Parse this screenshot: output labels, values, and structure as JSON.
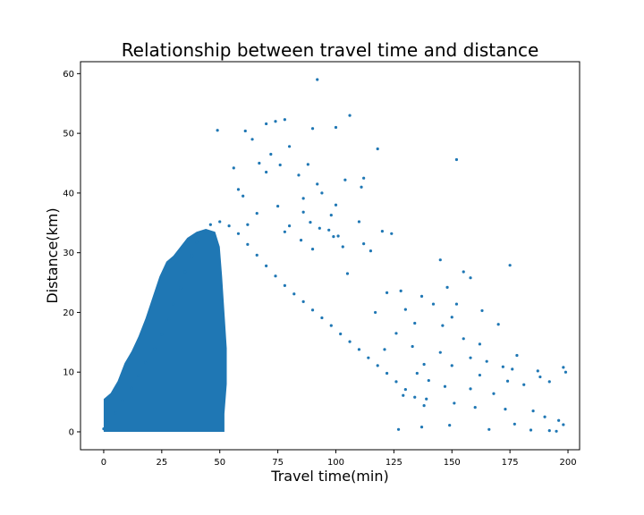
{
  "chart_data": {
    "type": "scatter",
    "title": "Relationship between travel time and distance",
    "xlabel": "Travel time(min)",
    "ylabel": "Distance(km)",
    "xlim": [
      -10,
      205
    ],
    "ylim": [
      -3,
      62
    ],
    "x_ticks": [
      0,
      25,
      50,
      75,
      100,
      125,
      150,
      175,
      200
    ],
    "y_ticks": [
      0,
      10,
      20,
      30,
      40,
      50,
      60
    ],
    "grid": false,
    "legend": "none",
    "color": "#1f77b4",
    "series": [
      {
        "points": [
          [
            92,
            59
          ],
          [
            106,
            53
          ],
          [
            78,
            52.3
          ],
          [
            74,
            52
          ],
          [
            70,
            51.6
          ],
          [
            100,
            51
          ],
          [
            90,
            50.8
          ],
          [
            49,
            50.5
          ],
          [
            61,
            50.4
          ],
          [
            64,
            49
          ],
          [
            118,
            47.4
          ],
          [
            80,
            47.8
          ],
          [
            152,
            45.6
          ],
          [
            72,
            46.5
          ],
          [
            88,
            44.8
          ],
          [
            67,
            45
          ],
          [
            76,
            44.7
          ],
          [
            56,
            44.2
          ],
          [
            70,
            43.5
          ],
          [
            84,
            43
          ],
          [
            112,
            42.5
          ],
          [
            104,
            42.2
          ],
          [
            92,
            41.5
          ],
          [
            111,
            41
          ],
          [
            58,
            40.6
          ],
          [
            94,
            40
          ],
          [
            86,
            39.1
          ],
          [
            60,
            39.5
          ],
          [
            100,
            38
          ],
          [
            75,
            37.8
          ],
          [
            86,
            36.8
          ],
          [
            98,
            36.3
          ],
          [
            66,
            36.6
          ],
          [
            89,
            35.1
          ],
          [
            110,
            35.2
          ],
          [
            62,
            34.7
          ],
          [
            80,
            34.5
          ],
          [
            93,
            34.1
          ],
          [
            78,
            33.5
          ],
          [
            97,
            33.8
          ],
          [
            120,
            33.6
          ],
          [
            124,
            33.2
          ],
          [
            99,
            32.7
          ],
          [
            101,
            32.8
          ],
          [
            85,
            32.1
          ],
          [
            112,
            31.5
          ],
          [
            103,
            31
          ],
          [
            90,
            30.6
          ],
          [
            115,
            30.3
          ],
          [
            145,
            28.8
          ],
          [
            175,
            27.9
          ],
          [
            155,
            26.8
          ],
          [
            105,
            26.5
          ],
          [
            158,
            25.8
          ],
          [
            148,
            24.2
          ],
          [
            128,
            23.6
          ],
          [
            122,
            23.3
          ],
          [
            137,
            22.7
          ],
          [
            142,
            21.4
          ],
          [
            130,
            20.5
          ],
          [
            152,
            21.4
          ],
          [
            163,
            20.3
          ],
          [
            117,
            20
          ],
          [
            150,
            19.2
          ],
          [
            134,
            18.2
          ],
          [
            146,
            17.8
          ],
          [
            170,
            18
          ],
          [
            126,
            16.5
          ],
          [
            155,
            15.6
          ],
          [
            162,
            14.7
          ],
          [
            133,
            14.3
          ],
          [
            121,
            13.8
          ],
          [
            145,
            13.3
          ],
          [
            158,
            12.4
          ],
          [
            178,
            12.8
          ],
          [
            165,
            11.8
          ],
          [
            138,
            11.3
          ],
          [
            150,
            11.1
          ],
          [
            172,
            10.9
          ],
          [
            176,
            10.5
          ],
          [
            187,
            10.2
          ],
          [
            198,
            10.8
          ],
          [
            199,
            10
          ],
          [
            135,
            9.8
          ],
          [
            162,
            9.5
          ],
          [
            188,
            9.2
          ],
          [
            192,
            8.4
          ],
          [
            140,
            8.6
          ],
          [
            174,
            8.5
          ],
          [
            181,
            7.9
          ],
          [
            147,
            7.6
          ],
          [
            158,
            7.2
          ],
          [
            168,
            6.4
          ],
          [
            129,
            6.1
          ],
          [
            139,
            5.5
          ],
          [
            151,
            4.8
          ],
          [
            160,
            4.1
          ],
          [
            173,
            3.8
          ],
          [
            185,
            3.5
          ],
          [
            190,
            2.5
          ],
          [
            196,
            1.9
          ],
          [
            198,
            1.2
          ],
          [
            149,
            1.1
          ],
          [
            177,
            1.3
          ],
          [
            137,
            0.8
          ],
          [
            166,
            0.4
          ],
          [
            192,
            0.2
          ],
          [
            195,
            0.1
          ],
          [
            184,
            0.3
          ],
          [
            127,
            0.4
          ],
          [
            0,
            0.5
          ],
          [
            2,
            1.5
          ],
          [
            5,
            3.2
          ],
          [
            8,
            5.2
          ],
          [
            12,
            7.3
          ],
          [
            15,
            9.4
          ],
          [
            18,
            11.6
          ],
          [
            22,
            13.9
          ],
          [
            25,
            16.3
          ],
          [
            28,
            18.8
          ],
          [
            30,
            21.4
          ],
          [
            33,
            24.1
          ],
          [
            35,
            26.8
          ],
          [
            38,
            29.5
          ],
          [
            40,
            31.8
          ],
          [
            43,
            33.4
          ],
          [
            46,
            34.7
          ],
          [
            50,
            35.2
          ],
          [
            54,
            34.5
          ],
          [
            58,
            33.2
          ],
          [
            62,
            31.4
          ],
          [
            66,
            29.6
          ],
          [
            70,
            27.8
          ],
          [
            74,
            26.1
          ],
          [
            78,
            24.5
          ],
          [
            82,
            23.1
          ],
          [
            86,
            21.8
          ],
          [
            90,
            20.4
          ],
          [
            94,
            19.1
          ],
          [
            98,
            17.8
          ],
          [
            102,
            16.4
          ],
          [
            106,
            15.1
          ],
          [
            110,
            13.8
          ],
          [
            114,
            12.4
          ],
          [
            118,
            11.1
          ],
          [
            122,
            9.8
          ],
          [
            126,
            8.4
          ],
          [
            130,
            7.1
          ],
          [
            134,
            5.8
          ],
          [
            138,
            4.4
          ]
        ]
      }
    ]
  }
}
